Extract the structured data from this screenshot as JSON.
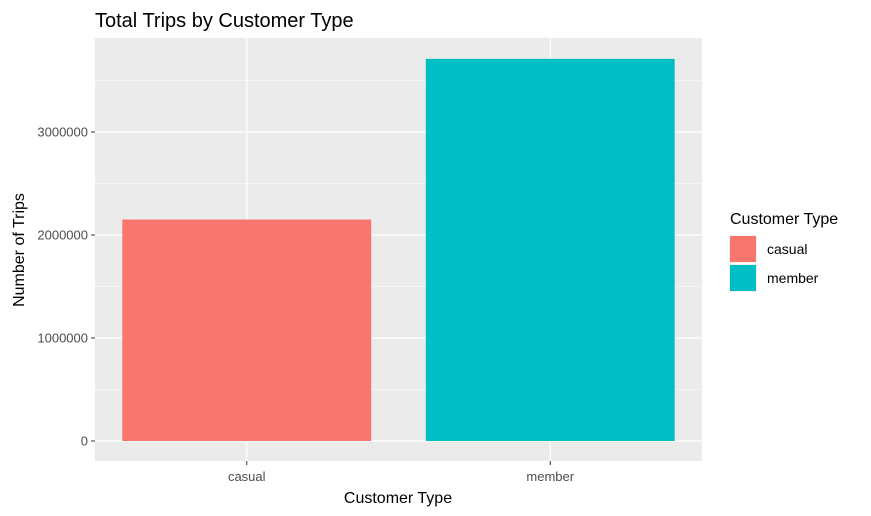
{
  "chart_data": {
    "type": "bar",
    "title": "Total Trips by Customer Type",
    "xlabel": "Customer Type",
    "ylabel": "Number of Trips",
    "categories": [
      "casual",
      "member"
    ],
    "values": [
      2150000,
      3710000
    ],
    "colors": [
      "#F8766D",
      "#00BFC4"
    ],
    "ylim": [
      0,
      3900000
    ],
    "yticks": [
      0,
      1000000,
      2000000,
      3000000
    ],
    "ytick_labels": [
      "0",
      "1000000",
      "2000000",
      "3000000"
    ],
    "grid": true,
    "legend": {
      "title": "Customer Type",
      "position": "right",
      "entries": [
        "casual",
        "member"
      ]
    }
  }
}
